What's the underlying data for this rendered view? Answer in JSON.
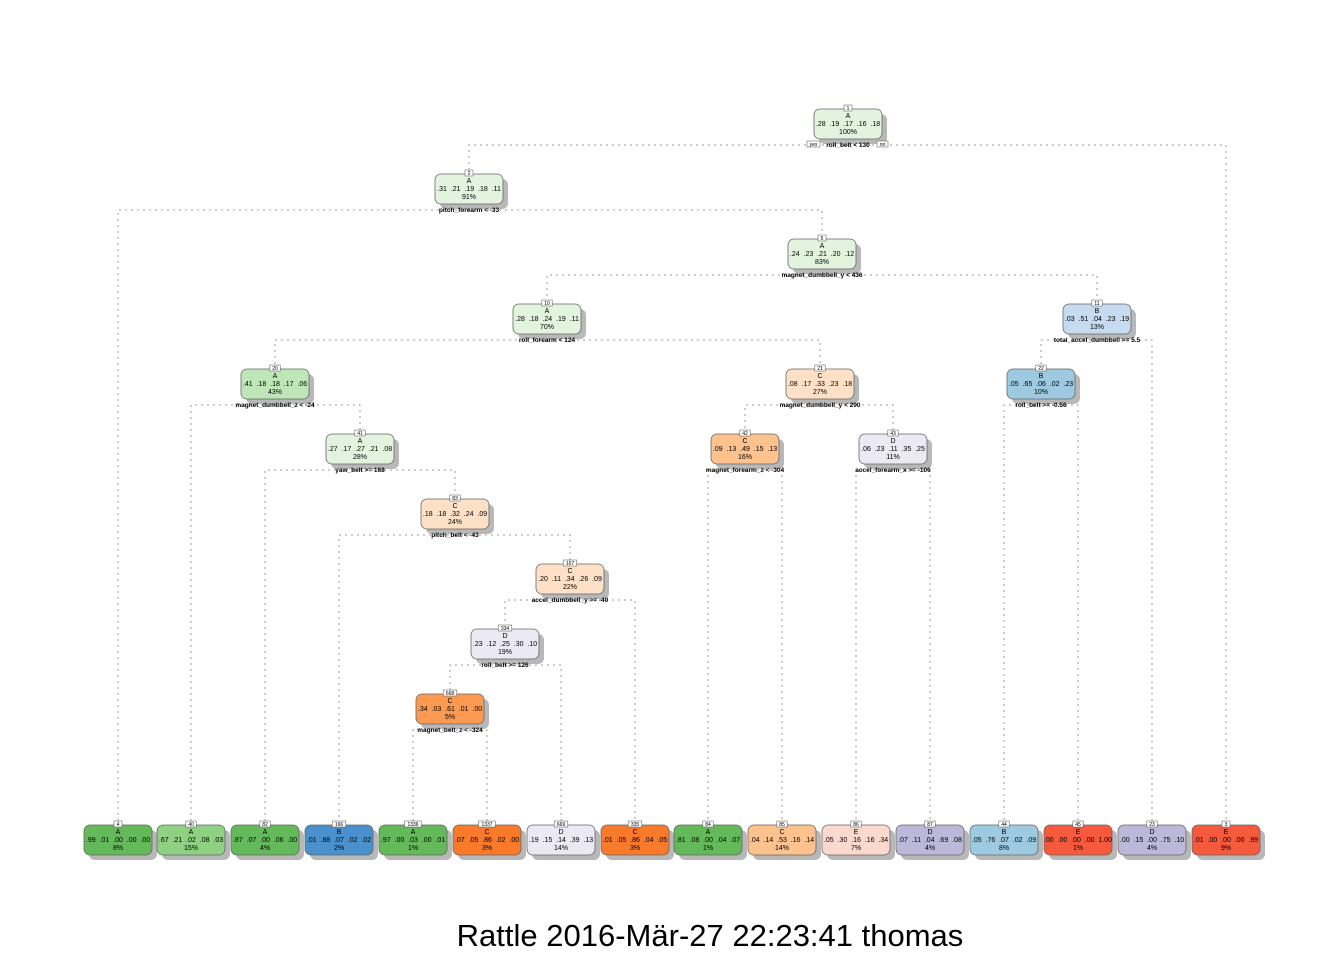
{
  "caption": "Rattle 2016-Mär-27 22:23:41 thomas",
  "branch_labels": {
    "yes": "yes",
    "no": "no"
  },
  "colors": {
    "A": [
      "#e2f4dd",
      "#bfe6b6",
      "#8fd082",
      "#64ba5a"
    ],
    "B": [
      "#c6dbef",
      "#9ecae1",
      "#4a90cc"
    ],
    "C": [
      "#fde0c5",
      "#fdc28e",
      "#fd9a52",
      "#f97a2a"
    ],
    "D": [
      "#ebe9f3",
      "#bcb8d9"
    ],
    "E": [
      "#fbd9cf",
      "#f55a3c"
    ],
    "border": "#666666",
    "edge": "#999999"
  },
  "nodes": [
    {
      "id": "n1",
      "num": "1",
      "cls": "A",
      "probs": ".28  .19  .17  .16  .18",
      "pct": "100%",
      "split": "roll_belt < 130",
      "fill": "#e2f4dd"
    },
    {
      "id": "n2",
      "num": "2",
      "cls": "A",
      "probs": ".31  .21  .19  .18  .11",
      "pct": "91%",
      "split": "pitch_forearm < -33",
      "fill": "#e2f4dd"
    },
    {
      "id": "n5",
      "num": "5",
      "cls": "A",
      "probs": ".24  .23  .21  .20  .12",
      "pct": "83%",
      "split": "magnet_dumbbell_y < 436",
      "fill": "#e2f4dd"
    },
    {
      "id": "n10",
      "num": "10",
      "cls": "A",
      "probs": ".28  .18  .24  .19  .11",
      "pct": "70%",
      "split": "roll_forearm < 124",
      "fill": "#e2f4dd"
    },
    {
      "id": "n11",
      "num": "11",
      "cls": "B",
      "probs": ".03  .51  .04  .23  .19",
      "pct": "13%",
      "split": "total_accel_dumbbell >= 5.5",
      "fill": "#c6dbef"
    },
    {
      "id": "n20",
      "num": "20",
      "cls": "A",
      "probs": ".41  .18  .18  .17  .06",
      "pct": "43%",
      "split": "magnet_dumbbell_z < -24",
      "fill": "#bfe6b6"
    },
    {
      "id": "n21",
      "num": "21",
      "cls": "C",
      "probs": ".08  .17  .33  .23  .18",
      "pct": "27%",
      "split": "magnet_dumbbell_y < 290",
      "fill": "#fde0c5"
    },
    {
      "id": "n22",
      "num": "22",
      "cls": "B",
      "probs": ".05  .65  .06  .02  .23",
      "pct": "10%",
      "split": "roll_belt >= -0.56",
      "fill": "#9ecae1"
    },
    {
      "id": "n41",
      "num": "41",
      "cls": "A",
      "probs": ".27  .17  .27  .21  .08",
      "pct": "28%",
      "split": "yaw_belt >= 168",
      "fill": "#e2f4dd"
    },
    {
      "id": "n42",
      "num": "42",
      "cls": "C",
      "probs": ".09  .13  .49  .15  .13",
      "pct": "16%",
      "split": "magnet_forearm_z < -304",
      "fill": "#fdc28e"
    },
    {
      "id": "n43",
      "num": "43",
      "cls": "D",
      "probs": ".06  .23  .11  .35  .25",
      "pct": "11%",
      "split": "accel_forearm_x >= -106",
      "fill": "#ebe9f3"
    },
    {
      "id": "n83",
      "num": "83",
      "cls": "C",
      "probs": ".18  .18  .32  .24  .09",
      "pct": "24%",
      "split": "pitch_belt < -43",
      "fill": "#fde0c5"
    },
    {
      "id": "n167",
      "num": "167",
      "cls": "C",
      "probs": ".20  .11  .34  .26  .09",
      "pct": "22%",
      "split": "accel_dumbbell_y >= -40",
      "fill": "#fde0c5"
    },
    {
      "id": "n334",
      "num": "334",
      "cls": "D",
      "probs": ".23  .12  .25  .30  .10",
      "pct": "19%",
      "split": "roll_belt >= 126",
      "fill": "#ebe9f3"
    },
    {
      "id": "n668",
      "num": "668",
      "cls": "C",
      "probs": ".34  .03  .61  .01  .00",
      "pct": "5%",
      "split": "magnet_belt_z < -324",
      "fill": "#fd9a52"
    }
  ],
  "leaves": [
    {
      "id": "l4",
      "num": "4",
      "cls": "A",
      "probs": ".99  .01  .00  .00  .00",
      "pct": "8%",
      "fill": "#64ba5a"
    },
    {
      "id": "l40",
      "num": "40",
      "cls": "A",
      "probs": ".67  .21  .02  .08  .03",
      "pct": "15%",
      "fill": "#8fd082"
    },
    {
      "id": "l82",
      "num": "82",
      "cls": "A",
      "probs": ".87  .07  .00  .06  .00",
      "pct": "4%",
      "fill": "#64ba5a"
    },
    {
      "id": "l166",
      "num": "166",
      "cls": "B",
      "probs": ".01  .88  .07  .02  .02",
      "pct": "2%",
      "fill": "#4a90cc"
    },
    {
      "id": "l1336",
      "num": "1336",
      "cls": "A",
      "probs": ".97  .00  .03  .00  .01",
      "pct": "1%",
      "fill": "#64ba5a"
    },
    {
      "id": "l1337",
      "num": "1337",
      "cls": "C",
      "probs": ".07  .05  .86  .02  .00",
      "pct": "3%",
      "fill": "#f97a2a"
    },
    {
      "id": "l669",
      "num": "669",
      "cls": "D",
      "probs": ".19  .15  .14  .39  .13",
      "pct": "14%",
      "fill": "#ebe9f3"
    },
    {
      "id": "l335",
      "num": "335",
      "cls": "C",
      "probs": ".01  .05  .86  .04  .05",
      "pct": "3%",
      "fill": "#f97a2a"
    },
    {
      "id": "l84",
      "num": "84",
      "cls": "A",
      "probs": ".81  .08  .00  .04  .07",
      "pct": "1%",
      "fill": "#64ba5a"
    },
    {
      "id": "l85",
      "num": "85",
      "cls": "C",
      "probs": ".04  .14  .53  .16  .14",
      "pct": "14%",
      "fill": "#fdc28e"
    },
    {
      "id": "l86",
      "num": "86",
      "cls": "E",
      "probs": ".05  .30  .16  .16  .34",
      "pct": "7%",
      "fill": "#fbd9cf"
    },
    {
      "id": "l87",
      "num": "87",
      "cls": "D",
      "probs": ".07  .11  .04  .69  .08",
      "pct": "4%",
      "fill": "#bcb8d9"
    },
    {
      "id": "l44",
      "num": "44",
      "cls": "B",
      "probs": ".05  .76  .07  .02  .09",
      "pct": "8%",
      "fill": "#9ecae1"
    },
    {
      "id": "l45",
      "num": "45",
      "cls": "E",
      "probs": ".00  .00  .00  .00  1.00",
      "pct": "1%",
      "fill": "#f55a3c"
    },
    {
      "id": "l23",
      "num": "23",
      "cls": "D",
      "probs": ".00  .15  .00  .75  .10",
      "pct": "4%",
      "fill": "#bcb8d9"
    },
    {
      "id": "l3",
      "num": "3",
      "cls": "E",
      "probs": ".01  .00  .00  .00  .99",
      "pct": "9%",
      "fill": "#f55a3c"
    }
  ],
  "edges": [
    [
      "n1",
      "n2"
    ],
    [
      "n1",
      "l3"
    ],
    [
      "n2",
      "l4"
    ],
    [
      "n2",
      "n5"
    ],
    [
      "n5",
      "n10"
    ],
    [
      "n5",
      "n11"
    ],
    [
      "n10",
      "n20"
    ],
    [
      "n10",
      "n21"
    ],
    [
      "n11",
      "n22"
    ],
    [
      "n11",
      "l23"
    ],
    [
      "n20",
      "l40"
    ],
    [
      "n20",
      "n41"
    ],
    [
      "n41",
      "l82"
    ],
    [
      "n41",
      "n83"
    ],
    [
      "n83",
      "l166"
    ],
    [
      "n83",
      "n167"
    ],
    [
      "n167",
      "n334"
    ],
    [
      "n167",
      "l335"
    ],
    [
      "n334",
      "n668"
    ],
    [
      "n334",
      "l669"
    ],
    [
      "n668",
      "l1336"
    ],
    [
      "n668",
      "l1337"
    ],
    [
      "n21",
      "n42"
    ],
    [
      "n21",
      "n43"
    ],
    [
      "n42",
      "l84"
    ],
    [
      "n42",
      "l85"
    ],
    [
      "n43",
      "l86"
    ],
    [
      "n43",
      "l87"
    ],
    [
      "n22",
      "l44"
    ],
    [
      "n22",
      "l45"
    ]
  ]
}
